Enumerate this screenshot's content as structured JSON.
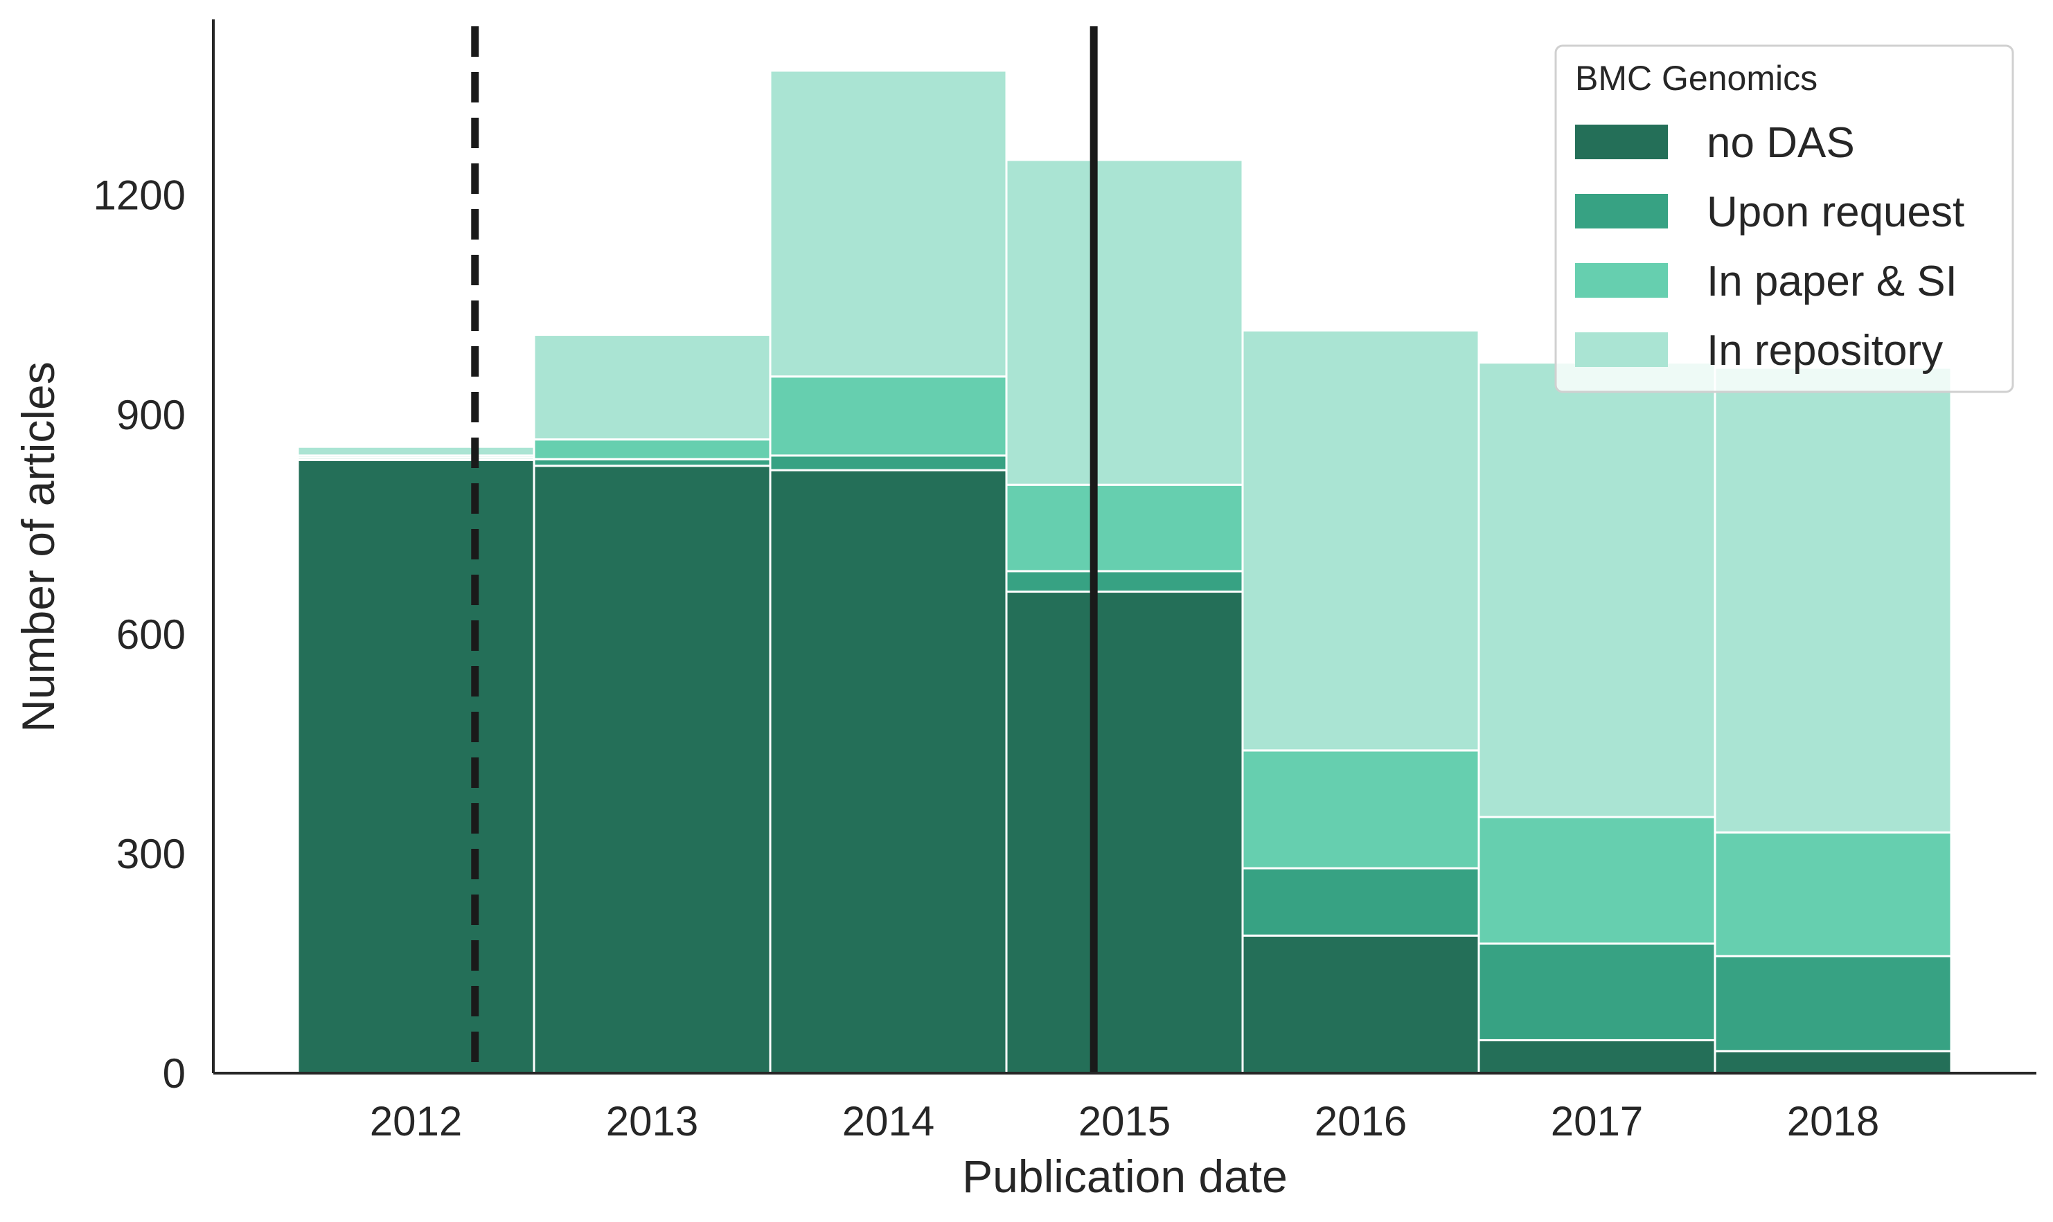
{
  "chart_data": {
    "type": "bar",
    "stacked": true,
    "title": "",
    "xlabel": "Publication date",
    "ylabel": "Number of articles",
    "categories": [
      "2012",
      "2013",
      "2014",
      "2015",
      "2016",
      "2017",
      "2018"
    ],
    "ylim": [
      0,
      1440
    ],
    "yticks": [
      0,
      300,
      600,
      900,
      1200
    ],
    "ytick_labels": [
      "0",
      "300",
      "600",
      "900",
      "1200"
    ],
    "grid": false,
    "series": [
      {
        "name": "no DAS",
        "color": "#246f58",
        "values": [
          838,
          830,
          824,
          658,
          188,
          45,
          30
        ]
      },
      {
        "name": "Upon request",
        "color": "#37a283",
        "values": [
          3,
          9,
          20,
          28,
          92,
          132,
          130
        ]
      },
      {
        "name": "In paper & SI",
        "color": "#66cfaf",
        "values": [
          3,
          27,
          108,
          118,
          161,
          173,
          169
        ]
      },
      {
        "name": "In repository",
        "color": "#aae4d3",
        "values": [
          12,
          143,
          418,
          444,
          574,
          621,
          635
        ]
      }
    ],
    "legend": {
      "title": "BMC Genomics",
      "position": "top-right"
    },
    "vlines": [
      {
        "x": 2012.25,
        "style": "dashed",
        "color": "#1a1a1a"
      },
      {
        "x": 2014.87,
        "style": "solid",
        "color": "#1a1a1a"
      }
    ]
  }
}
